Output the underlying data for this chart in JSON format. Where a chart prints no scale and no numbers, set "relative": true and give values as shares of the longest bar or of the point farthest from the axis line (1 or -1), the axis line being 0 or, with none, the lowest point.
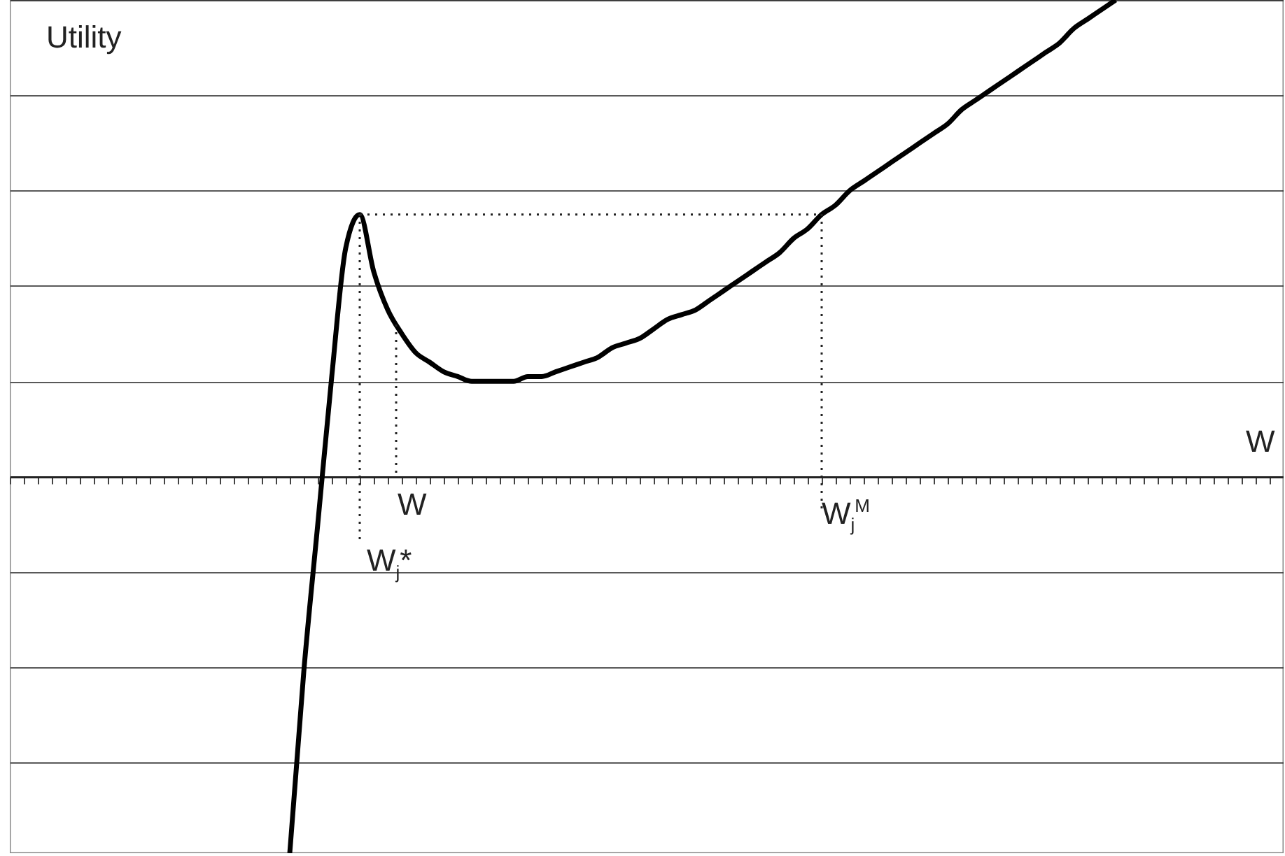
{
  "chart_data": {
    "type": "line",
    "relative": true,
    "xlabel": "W",
    "ylabel": "Utility",
    "grid": "y",
    "line_style": "solid",
    "categories": [
      null,
      null,
      null,
      null,
      null,
      null,
      null,
      null,
      null,
      null,
      null,
      null,
      null,
      null,
      null,
      null,
      null,
      null,
      null,
      null,
      null,
      null,
      null,
      null,
      null,
      null,
      null,
      null,
      null,
      null,
      null,
      null,
      null,
      null,
      null,
      null,
      null,
      null,
      null,
      null,
      null,
      null,
      null,
      null,
      null,
      null,
      null,
      null,
      null,
      null,
      null,
      null,
      null,
      null,
      null,
      null,
      null,
      null,
      null,
      null,
      null,
      null,
      null,
      null,
      null,
      null,
      null,
      null,
      null,
      null,
      null,
      null,
      null,
      null,
      null,
      null,
      null,
      null,
      null,
      null,
      null,
      null,
      null,
      null,
      null,
      null,
      null,
      null,
      null,
      null,
      null,
      null
    ],
    "series": [
      {
        "color": "#000000",
        "values": [
          null,
          null,
          null,
          null,
          null,
          null,
          null,
          null,
          null,
          null,
          null,
          null,
          null,
          null,
          null,
          null,
          null,
          null,
          null,
          null,
          -0.79,
          -0.41,
          -0.1,
          0.21,
          0.48,
          0.55,
          0.43,
          0.35,
          0.3,
          0.26,
          0.24,
          0.22,
          0.21,
          0.2,
          0.2,
          0.2,
          0.2,
          0.21,
          0.21,
          0.22,
          0.23,
          0.24,
          0.25,
          0.27,
          0.28,
          0.29,
          0.31,
          0.33,
          0.34,
          0.35,
          0.37,
          0.39,
          0.41,
          0.43,
          0.45,
          0.47,
          0.5,
          0.52,
          0.55,
          0.57,
          0.6,
          0.62,
          0.64,
          0.66,
          0.68,
          0.7,
          0.72,
          0.74,
          0.77,
          0.79,
          0.81,
          0.83,
          0.85,
          0.87,
          0.89,
          0.91,
          0.94,
          0.96,
          0.98,
          1,
          null,
          null,
          null,
          null,
          null,
          null,
          null,
          null,
          null,
          null,
          null,
          null
        ]
      },
      {
        "color": "#222222",
        "line_style": "dotted",
        "values": [
          null,
          null,
          null,
          null,
          null,
          null,
          null,
          null,
          null,
          null,
          null,
          null,
          null,
          null,
          null,
          null,
          null,
          null,
          null,
          null,
          null,
          null,
          null,
          null,
          null,
          0.55,
          0.55,
          0.55,
          0.55,
          0.55,
          0.55,
          0.55,
          0.55,
          0.55,
          0.55,
          0.55,
          0.55,
          0.55,
          0.55,
          0.55,
          0.55,
          0.55,
          0.55,
          0.55,
          0.55,
          0.55,
          0.55,
          0.55,
          0.55,
          0.55,
          0.55,
          0.55,
          0.55,
          0.55,
          0.55,
          0.55,
          0.55,
          0.55,
          0.55,
          null,
          null,
          null,
          null,
          null,
          null,
          null,
          null,
          null,
          null,
          null,
          null,
          null,
          null,
          null,
          null,
          null,
          null,
          null,
          null,
          null,
          null,
          null,
          null,
          null,
          null,
          null,
          null,
          null,
          null,
          null,
          null,
          null
        ]
      }
    ],
    "annotations": [
      "W",
      "W$_{j}$*",
      "W$_{j}$$^{M}$"
    ]
  }
}
